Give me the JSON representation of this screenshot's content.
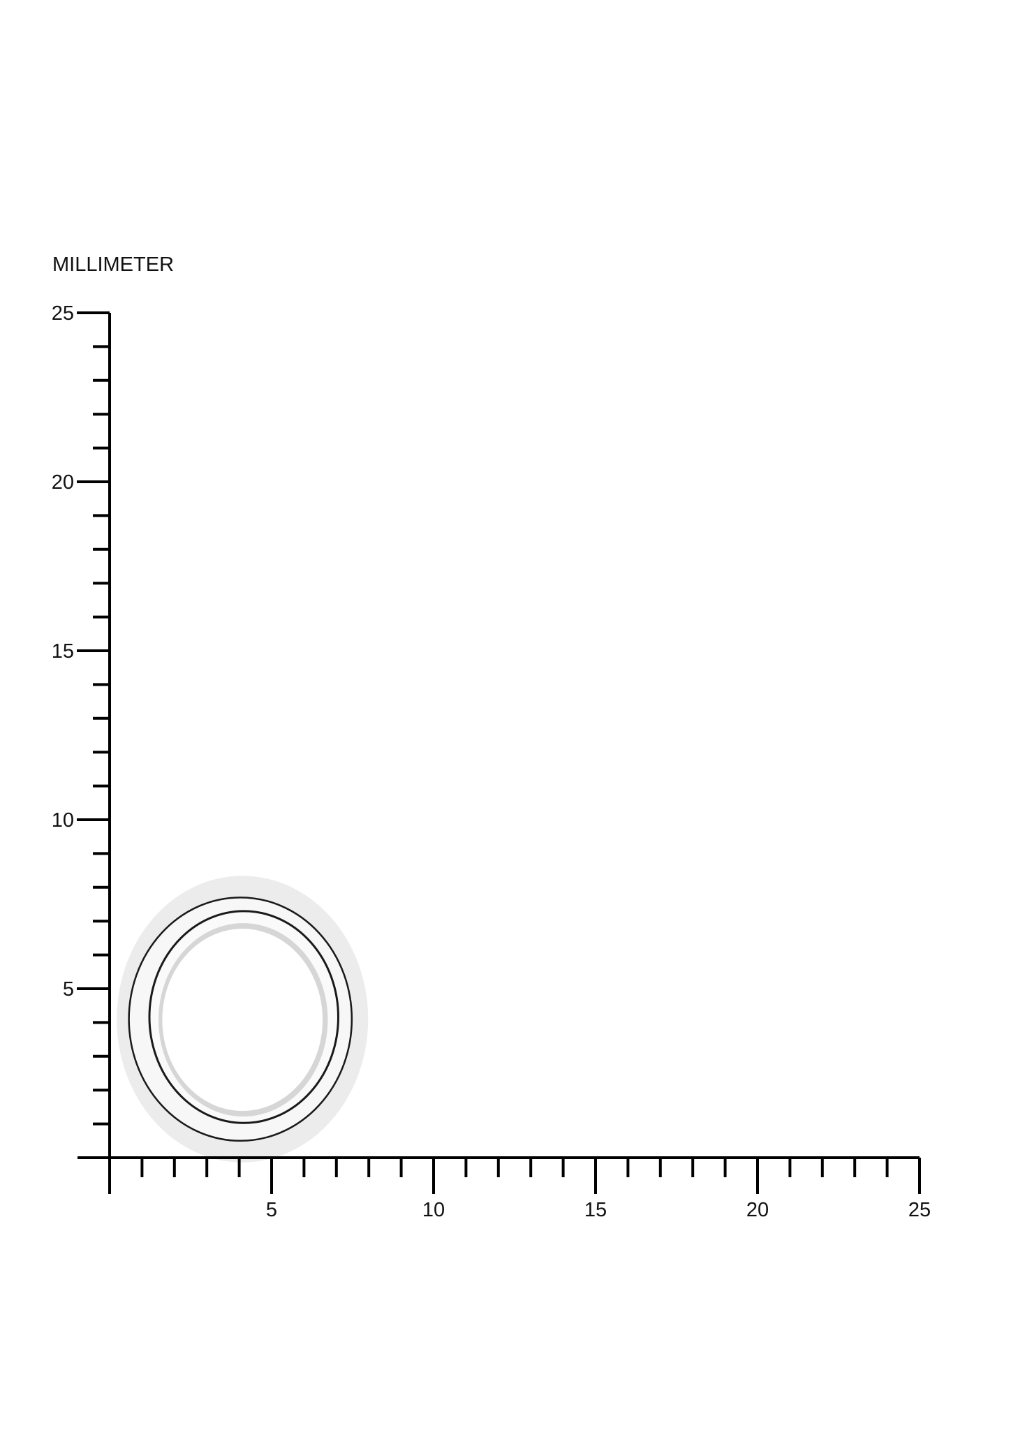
{
  "chart_data": {
    "type": "diagram",
    "title": "MILLIMETER",
    "xlim": [
      0,
      25
    ],
    "ylim": [
      0,
      25
    ],
    "minor_tick_step": 1,
    "x_tick_labels": [
      "5",
      "10",
      "15",
      "20",
      "25"
    ],
    "y_tick_labels": [
      "5",
      "10",
      "15",
      "20",
      "25"
    ],
    "grid": false,
    "object": {
      "name": "ring",
      "center_mm": [
        4.1,
        4.1
      ],
      "outer_diameter_mm": 8,
      "inner_diameter_mm": 5.5,
      "colors": {
        "metal_light": "#ececec",
        "metal_mid": "#d6d6d6",
        "edge_line": "#1a1a1a"
      }
    },
    "colors": {
      "axis": "#000000",
      "background": "#ffffff"
    }
  }
}
